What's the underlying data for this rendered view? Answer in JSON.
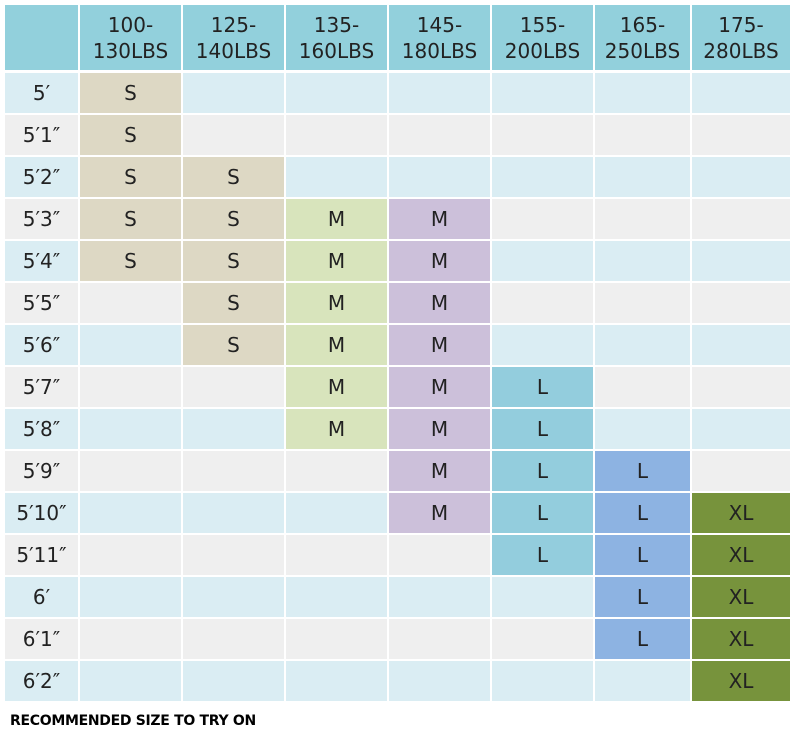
{
  "table": {
    "columns": [
      "100-130LBS",
      "125-140LBS",
      "135-160LBS",
      "145-180LBS",
      "155-200LBS",
      "165-250LBS",
      "175-280LBS"
    ],
    "column_colors": [
      "#ddd8c4",
      "#ddd8c4",
      "#d8e4bc",
      "#ccc0da",
      "#93cddd",
      "#8db3e2",
      "#77933c"
    ],
    "rows": [
      {
        "height": "5′",
        "sizes": [
          "S",
          null,
          null,
          null,
          null,
          null,
          null
        ]
      },
      {
        "height": "5′1″",
        "sizes": [
          "S",
          null,
          null,
          null,
          null,
          null,
          null
        ]
      },
      {
        "height": "5′2″",
        "sizes": [
          "S",
          "S",
          null,
          null,
          null,
          null,
          null
        ]
      },
      {
        "height": "5′3″",
        "sizes": [
          "S",
          "S",
          "M",
          "M",
          null,
          null,
          null
        ]
      },
      {
        "height": "5′4″",
        "sizes": [
          "S",
          "S",
          "M",
          "M",
          null,
          null,
          null
        ]
      },
      {
        "height": "5′5″",
        "sizes": [
          null,
          "S",
          "M",
          "M",
          null,
          null,
          null
        ]
      },
      {
        "height": "5′6″",
        "sizes": [
          null,
          "S",
          "M",
          "M",
          null,
          null,
          null
        ]
      },
      {
        "height": "5′7″",
        "sizes": [
          null,
          null,
          "M",
          "M",
          "L",
          null,
          null
        ]
      },
      {
        "height": "5′8″",
        "sizes": [
          null,
          null,
          "M",
          "M",
          "L",
          null,
          null
        ]
      },
      {
        "height": "5′9″",
        "sizes": [
          null,
          null,
          null,
          "M",
          "L",
          "L",
          null
        ]
      },
      {
        "height": "5′10″",
        "sizes": [
          null,
          null,
          null,
          "M",
          "L",
          "L",
          "XL"
        ]
      },
      {
        "height": "5′11″",
        "sizes": [
          null,
          null,
          null,
          null,
          "L",
          "L",
          "XL"
        ]
      },
      {
        "height": "6′",
        "sizes": [
          null,
          null,
          null,
          null,
          null,
          "L",
          "XL"
        ]
      },
      {
        "height": "6′1″",
        "sizes": [
          null,
          null,
          null,
          null,
          null,
          "L",
          "XL"
        ]
      },
      {
        "height": "6′2″",
        "sizes": [
          null,
          null,
          null,
          null,
          null,
          null,
          "XL"
        ]
      }
    ]
  },
  "footer": "RECOMMENDED SIZE TO TRY ON"
}
